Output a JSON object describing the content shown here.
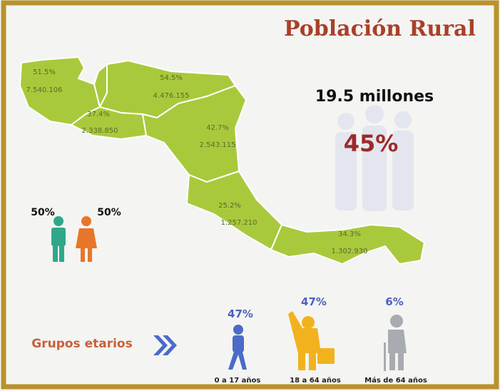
{
  "title": "Población Rural",
  "total": "19.5 millones",
  "total_pct": "45%",
  "countries": [
    {
      "pct": "51.5%",
      "pop": "7.540.106"
    },
    {
      "pct": "37.4%",
      "pop": "2.338.850"
    },
    {
      "pct": "54.5%",
      "pop": "4.476.155"
    },
    {
      "pct": "42.7%",
      "pop": "2.543.115"
    },
    {
      "pct": "25.2%",
      "pop": "1.257.210"
    },
    {
      "pct": "34.3%",
      "pop": "1.302.930"
    }
  ],
  "gender": {
    "male": "50%",
    "female": "50%"
  },
  "age_title": "Grupos etarios",
  "age_groups": [
    {
      "pct": "47%",
      "label": "0 a 17 años"
    },
    {
      "pct": "47%",
      "label": "18 a 64 años"
    },
    {
      "pct": "6%",
      "label": "Más de 64 años"
    }
  ]
}
